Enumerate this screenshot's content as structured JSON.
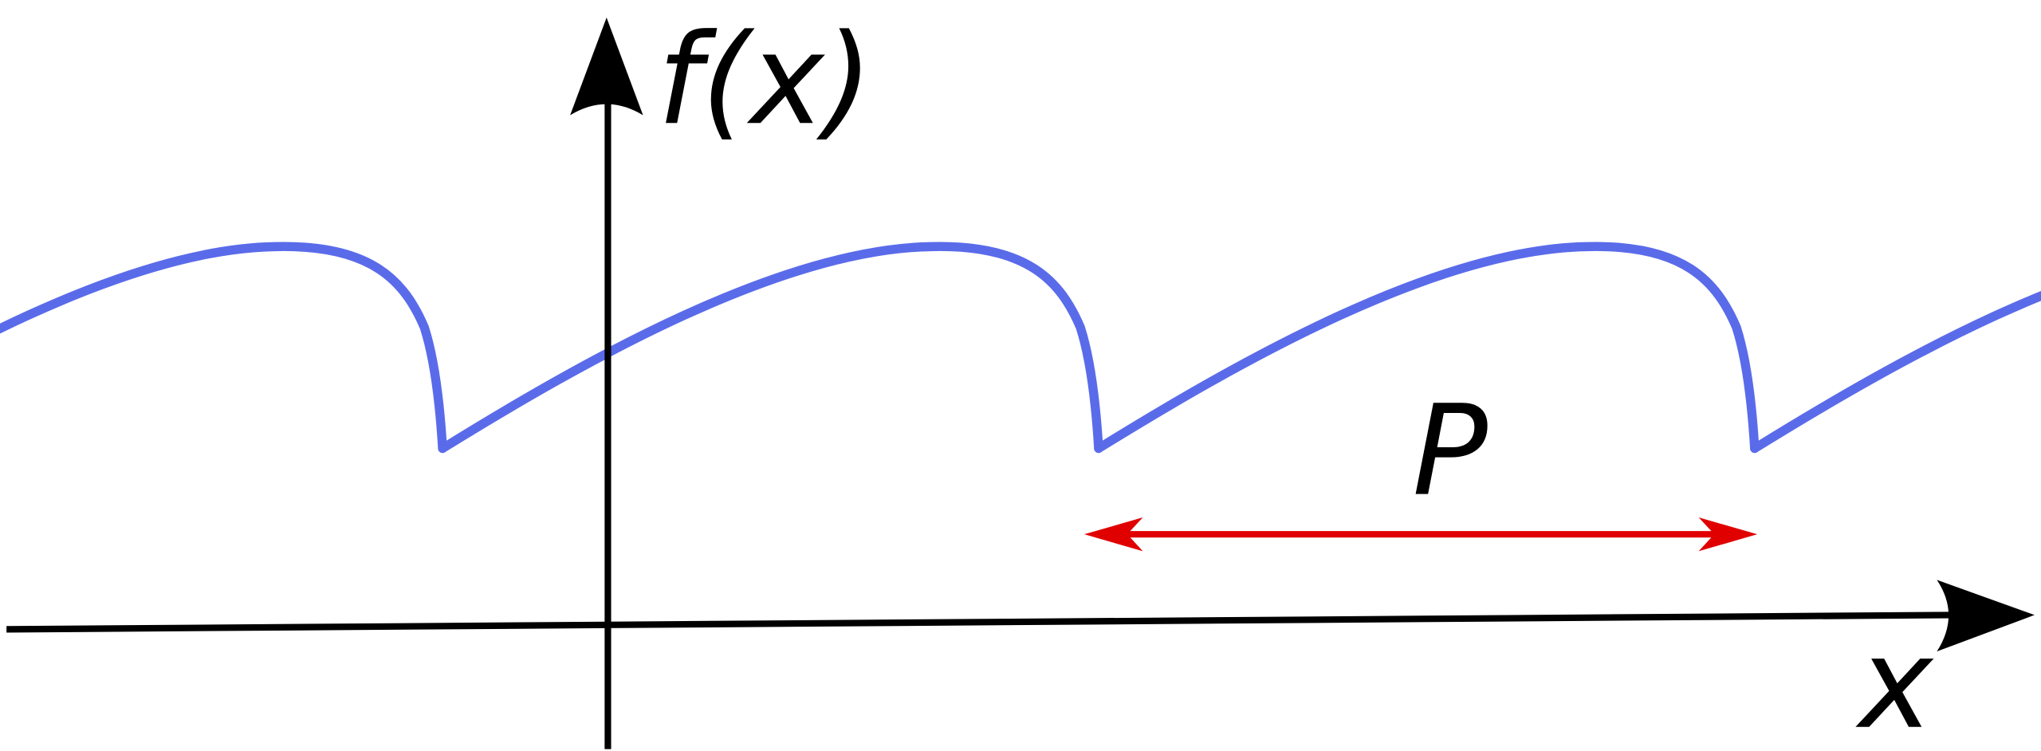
{
  "labels": {
    "y_axis": "f(x)",
    "x_axis": "x",
    "period": "P"
  }
}
